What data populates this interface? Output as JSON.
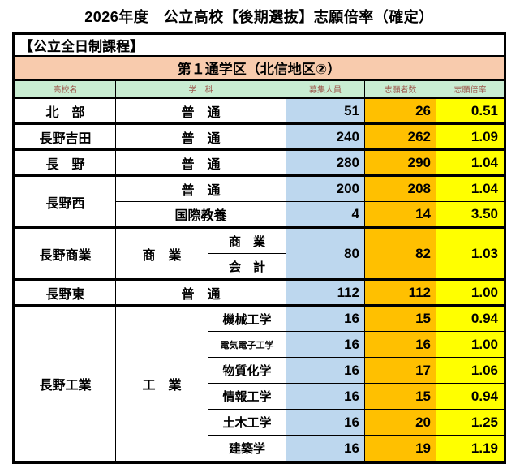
{
  "title": "2026年度　公立高校【後期選抜】志願倍率（確定）",
  "section_label": "【公立全日制課程】",
  "district_label": "第１通学区（北信地区②）",
  "columns": {
    "school": "高校名",
    "department": "学　科",
    "capacity": "募集人員",
    "applicants": "志願者数",
    "ratio": "志願倍率"
  },
  "colors": {
    "district_bg": "#F8CBAD",
    "header_bg": "#C9EDD2",
    "header_text": "#9E5A4E",
    "capacity_bg": "#BDD7EE",
    "applicants_bg": "#FFC000",
    "ratio_bg": "#FFFF00",
    "border": "#000000"
  },
  "rows": [
    {
      "group": true,
      "cells": [
        {
          "kind": "school",
          "text": "北　部"
        },
        {
          "kind": "dept",
          "text": "普　通",
          "colspan": 2
        },
        {
          "kind": "capacity",
          "text": "51"
        },
        {
          "kind": "applicants",
          "text": "26"
        },
        {
          "kind": "ratio",
          "text": "0.51"
        }
      ]
    },
    {
      "group": true,
      "cells": [
        {
          "kind": "school",
          "text": "長野吉田"
        },
        {
          "kind": "dept",
          "text": "普　通",
          "colspan": 2
        },
        {
          "kind": "capacity",
          "text": "240"
        },
        {
          "kind": "applicants",
          "text": "262"
        },
        {
          "kind": "ratio",
          "text": "1.09"
        }
      ]
    },
    {
      "group": true,
      "cells": [
        {
          "kind": "school",
          "text": "長　野"
        },
        {
          "kind": "dept",
          "text": "普　通",
          "colspan": 2
        },
        {
          "kind": "capacity",
          "text": "280"
        },
        {
          "kind": "applicants",
          "text": "290"
        },
        {
          "kind": "ratio",
          "text": "1.04"
        }
      ]
    },
    {
      "group": true,
      "cells": [
        {
          "kind": "school",
          "text": "長野西",
          "rowspan": 2
        },
        {
          "kind": "dept",
          "text": "普　通",
          "colspan": 2
        },
        {
          "kind": "capacity",
          "text": "200"
        },
        {
          "kind": "applicants",
          "text": "208"
        },
        {
          "kind": "ratio",
          "text": "1.04"
        }
      ]
    },
    {
      "cells": [
        {
          "kind": "dept",
          "text": "国際教養",
          "colspan": 2
        },
        {
          "kind": "capacity",
          "text": "4"
        },
        {
          "kind": "applicants",
          "text": "14"
        },
        {
          "kind": "ratio",
          "text": "3.50"
        }
      ]
    },
    {
      "group": true,
      "cells": [
        {
          "kind": "school",
          "text": "長野商業",
          "rowspan": 2
        },
        {
          "kind": "dept",
          "text": "商　業",
          "rowspan": 2
        },
        {
          "kind": "subdept",
          "text": "商　業"
        },
        {
          "kind": "capacity",
          "text": "80",
          "rowspan": 2
        },
        {
          "kind": "applicants",
          "text": "82",
          "rowspan": 2
        },
        {
          "kind": "ratio",
          "text": "1.03",
          "rowspan": 2
        }
      ]
    },
    {
      "cells": [
        {
          "kind": "subdept",
          "text": "会　計"
        }
      ]
    },
    {
      "group": true,
      "cells": [
        {
          "kind": "school",
          "text": "長野東"
        },
        {
          "kind": "dept",
          "text": "普　通",
          "colspan": 2
        },
        {
          "kind": "capacity",
          "text": "112"
        },
        {
          "kind": "applicants",
          "text": "112"
        },
        {
          "kind": "ratio",
          "text": "1.00"
        }
      ]
    },
    {
      "group": true,
      "cells": [
        {
          "kind": "school",
          "text": "長野工業",
          "rowspan": 6
        },
        {
          "kind": "dept",
          "text": "工　業",
          "rowspan": 6
        },
        {
          "kind": "subdept",
          "text": "機械工学"
        },
        {
          "kind": "capacity",
          "text": "16"
        },
        {
          "kind": "applicants",
          "text": "15"
        },
        {
          "kind": "ratio",
          "text": "0.94"
        }
      ]
    },
    {
      "cells": [
        {
          "kind": "subdept",
          "text": "電気電子工学",
          "small": true
        },
        {
          "kind": "capacity",
          "text": "16"
        },
        {
          "kind": "applicants",
          "text": "16"
        },
        {
          "kind": "ratio",
          "text": "1.00"
        }
      ]
    },
    {
      "cells": [
        {
          "kind": "subdept",
          "text": "物質化学"
        },
        {
          "kind": "capacity",
          "text": "16"
        },
        {
          "kind": "applicants",
          "text": "17"
        },
        {
          "kind": "ratio",
          "text": "1.06"
        }
      ]
    },
    {
      "cells": [
        {
          "kind": "subdept",
          "text": "情報工学"
        },
        {
          "kind": "capacity",
          "text": "16"
        },
        {
          "kind": "applicants",
          "text": "15"
        },
        {
          "kind": "ratio",
          "text": "0.94"
        }
      ]
    },
    {
      "cells": [
        {
          "kind": "subdept",
          "text": "土木工学"
        },
        {
          "kind": "capacity",
          "text": "16"
        },
        {
          "kind": "applicants",
          "text": "20"
        },
        {
          "kind": "ratio",
          "text": "1.25"
        }
      ]
    },
    {
      "cells": [
        {
          "kind": "subdept",
          "text": "建築学"
        },
        {
          "kind": "capacity",
          "text": "16"
        },
        {
          "kind": "applicants",
          "text": "19"
        },
        {
          "kind": "ratio",
          "text": "1.19"
        }
      ]
    }
  ]
}
